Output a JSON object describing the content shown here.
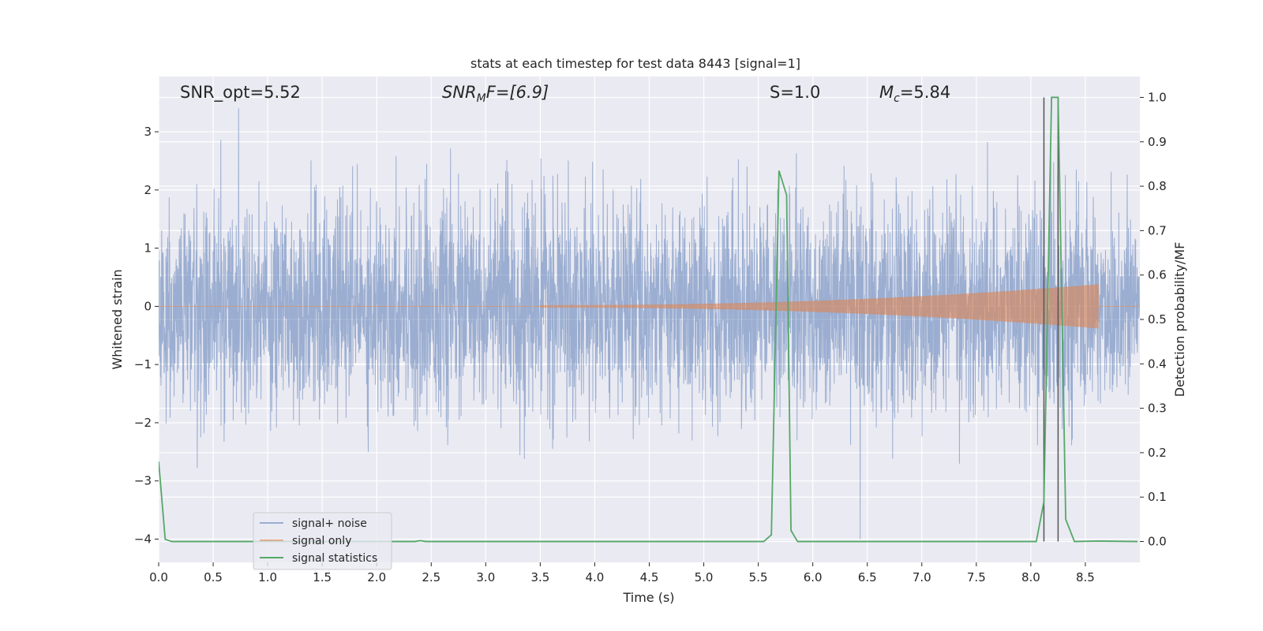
{
  "chart_data": {
    "type": "line",
    "title": "stats at each timestep for test data 8443 [signal=1]",
    "xlabel": "Time (s)",
    "ylabel": "Whitened strain",
    "y2label": "Detection probability/MF",
    "xlim": [
      0,
      9.0
    ],
    "ylim": [
      -4.4,
      3.95
    ],
    "y2lim": [
      -0.047,
      1.047
    ],
    "xticks": [
      0.0,
      0.5,
      1.0,
      1.5,
      2.0,
      2.5,
      3.0,
      3.5,
      4.0,
      4.5,
      5.0,
      5.5,
      6.0,
      6.5,
      7.0,
      7.5,
      8.0,
      8.5
    ],
    "yticks": [
      3,
      2,
      1,
      0,
      -1,
      -2,
      -3,
      -4
    ],
    "y2ticks": [
      1.0,
      0.9,
      0.8,
      0.7,
      0.6,
      0.5,
      0.4,
      0.3,
      0.2,
      0.1,
      0.0
    ],
    "grid": true,
    "legend_position": "lower-left",
    "colors": {
      "noise": "#4c72b0",
      "signal": "#dd8452",
      "stats": "#55a868",
      "markers": "#555555",
      "background": "#eaeaf2"
    },
    "annotations": {
      "snr_opt": "SNR_opt=5.52",
      "snr_mf_base": "SNR",
      "snr_mf_sub": "M",
      "snr_mf_rest": "F=[6.9]",
      "s_value": "S=1.0",
      "mc_base": "M",
      "mc_sub": "c",
      "mc_rest": "=5.84"
    },
    "markers_x": [
      8.12,
      8.25
    ],
    "series": [
      {
        "name": "signal+ noise",
        "description_amplitude": "whitened noise approx. std 0.9, extremes to about ±3.6",
        "envelope": {
          "t": [
            0,
            9.0
          ],
          "std": 0.9
        }
      },
      {
        "name": "signal only",
        "chirp": {
          "t_start": 3.5,
          "t_end": 8.62,
          "amp_start": 0.02,
          "amp_end": 0.38
        }
      },
      {
        "name": "signal statistics",
        "x": [
          0.0,
          0.06,
          0.12,
          2.35,
          2.4,
          2.45,
          5.55,
          5.62,
          5.69,
          5.76,
          5.8,
          5.86,
          8.05,
          8.12,
          8.19,
          8.25,
          8.32,
          8.4,
          8.6,
          8.98
        ],
        "y": [
          0.18,
          0.005,
          0.0,
          0.0,
          0.002,
          0.0,
          0.0,
          0.015,
          0.835,
          0.78,
          0.025,
          0.0,
          0.0,
          0.09,
          1.0,
          1.0,
          0.05,
          0.0,
          0.001,
          0.0
        ]
      }
    ]
  }
}
